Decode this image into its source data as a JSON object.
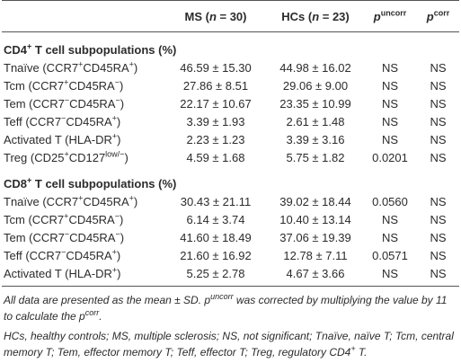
{
  "table": {
    "header": [
      [
        "MS (",
        {
          "i": "n"
        },
        " = 30)"
      ],
      [
        "HCs (",
        {
          "i": "n"
        },
        " = 23)"
      ],
      [
        {
          "i": "p"
        },
        {
          "sup": "uncorr"
        }
      ],
      [
        {
          "i": "p"
        },
        {
          "sup": "corr"
        }
      ]
    ],
    "sections": [
      {
        "title": [
          "CD4",
          {
            "sup": "+"
          },
          " T cell subpopulations (%)"
        ],
        "rows": [
          {
            "label": [
              "Tnaïve (CCR7",
              {
                "sup": "+"
              },
              "CD45RA",
              {
                "sup": "+"
              },
              ")"
            ],
            "cells": [
              "46.59 ± 15.30",
              "44.98 ± 16.02",
              "NS",
              "NS"
            ]
          },
          {
            "label": [
              "Tcm (CCR7",
              {
                "sup": "+"
              },
              "CD45RA",
              {
                "sup": "−"
              },
              ")"
            ],
            "cells": [
              "27.86 ± 8.51",
              "29.06 ± 9.00",
              "NS",
              "NS"
            ]
          },
          {
            "label": [
              "Tem (CCR7",
              {
                "sup": "−"
              },
              "CD45RA",
              {
                "sup": "−"
              },
              ")"
            ],
            "cells": [
              "22.17 ± 10.67",
              "23.35 ± 10.99",
              "NS",
              "NS"
            ]
          },
          {
            "label": [
              "Teff (CCR7",
              {
                "sup": "−"
              },
              "CD45RA",
              {
                "sup": "+"
              },
              ")"
            ],
            "cells": [
              "3.39 ± 1.93",
              "2.61 ± 1.48",
              "NS",
              "NS"
            ]
          },
          {
            "label": [
              "Activated T (HLA-DR",
              {
                "sup": "+"
              },
              ")"
            ],
            "cells": [
              "2.23 ± 1.23",
              "3.39 ± 3.16",
              "NS",
              "NS"
            ]
          },
          {
            "label": [
              "Treg (CD25",
              {
                "sup": "+"
              },
              "CD127",
              {
                "sup": "low/−"
              },
              ")"
            ],
            "cells": [
              "4.59 ± 1.68",
              "5.75 ± 1.82",
              "0.0201",
              "NS"
            ]
          }
        ]
      },
      {
        "title": [
          "CD8",
          {
            "sup": "+"
          },
          " T cell subpopulations (%)"
        ],
        "rows": [
          {
            "label": [
              "Tnaïve (CCR7",
              {
                "sup": "+"
              },
              "CD45RA",
              {
                "sup": "+"
              },
              ")"
            ],
            "cells": [
              "30.43 ± 21.11",
              "39.02 ± 18.44",
              "0.0560",
              "NS"
            ]
          },
          {
            "label": [
              "Tcm (CCR7",
              {
                "sup": "+"
              },
              "CD45RA",
              {
                "sup": "−"
              },
              ")"
            ],
            "cells": [
              "6.14 ± 3.74",
              "10.40 ± 13.14",
              "NS",
              "NS"
            ]
          },
          {
            "label": [
              "Tem (CCR7",
              {
                "sup": "−"
              },
              "CD45RA",
              {
                "sup": "−"
              },
              ")"
            ],
            "cells": [
              "41.60 ± 18.49",
              "37.06 ± 19.39",
              "NS",
              "NS"
            ]
          },
          {
            "label": [
              "Teff (CCR7",
              {
                "sup": "−"
              },
              "CD45RA",
              {
                "sup": "+"
              },
              ")"
            ],
            "cells": [
              "21.60 ± 16.92",
              "12.78 ± 7.11",
              "0.0571",
              "NS"
            ]
          },
          {
            "label": [
              "Activated T (HLA-DR",
              {
                "sup": "+"
              },
              ")"
            ],
            "cells": [
              "5.25 ± 2.78",
              "4.67 ± 3.66",
              "NS",
              "NS"
            ]
          }
        ]
      }
    ]
  },
  "notes": [
    [
      "All data are presented as the mean ± SD. p",
      {
        "sup": "uncorr"
      },
      " was corrected by multiplying the value by 11 to calculate the p",
      {
        "sup": "corr"
      },
      "."
    ],
    [
      "HCs, healthy controls; MS, multiple sclerosis; NS, not significant; Tnaïve, naïve T; Tcm, central memory T; Tem, effector memory T; Teff, effector T; Treg, regulatory CD4",
      {
        "sup": "+"
      },
      " T."
    ]
  ]
}
